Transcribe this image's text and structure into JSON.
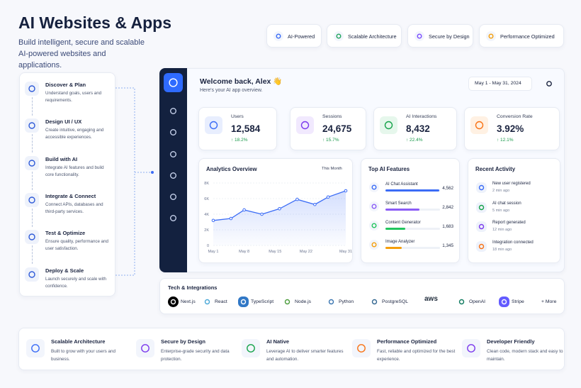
{
  "header": {
    "title": "AI Websites & Apps",
    "subtitle": "Build intelligent, secure and scalable AI-powered websites and applications."
  },
  "badges": [
    "AI-Powered",
    "Scalable Architecture",
    "Secure by Design",
    "Performance Optimized"
  ],
  "steps": [
    {
      "title": "Discover & Plan",
      "text": "Understand goals, users and requirements."
    },
    {
      "title": "Design UI / UX",
      "text": "Create intuitive, engaging and accessible experiences."
    },
    {
      "title": "Build with AI",
      "text": "Integrate AI features and build core functionality."
    },
    {
      "title": "Integrate & Connect",
      "text": "Connect APIs, databases and third-party services."
    },
    {
      "title": "Test & Optimize",
      "text": "Ensure quality, performance and user satisfaction."
    },
    {
      "title": "Deploy & Scale",
      "text": "Launch securely and scale with confidence."
    }
  ],
  "dashboard": {
    "welcome": "Welcome back, Alex 👋",
    "subtitle": "Here's your AI app overview.",
    "date_range": "May 1 - May 31, 2024",
    "stats": [
      {
        "label": "Users",
        "value": "12,584",
        "change": "↑ 18.2%"
      },
      {
        "label": "Sessions",
        "value": "24,675",
        "change": "↑ 15.7%"
      },
      {
        "label": "AI Interactions",
        "value": "8,432",
        "change": "↑ 22.4%"
      },
      {
        "label": "Conversion Rate",
        "value": "3.92%",
        "change": "↑ 12.1%"
      }
    ],
    "analytics": {
      "type": "line",
      "title": "Analytics Overview",
      "filter": "This Month",
      "x": [
        1,
        5,
        8,
        12,
        16,
        20,
        24,
        27,
        31
      ],
      "values": [
        3200,
        3450,
        4550,
        4000,
        4700,
        5900,
        5250,
        6200,
        7000
      ],
      "xlim": [
        1,
        31
      ],
      "xticks": [
        {
          "value": 1,
          "label": "May 1"
        },
        {
          "value": 8,
          "label": "May 8"
        },
        {
          "value": 15,
          "label": "May 15"
        },
        {
          "value": 22,
          "label": "May 22"
        },
        {
          "value": 31,
          "label": "May 31"
        }
      ],
      "ylim": [
        0,
        8000
      ],
      "yticks": [
        {
          "value": 0,
          "label": "0"
        },
        {
          "value": 2000,
          "label": "2K"
        },
        {
          "value": 4000,
          "label": "4K"
        },
        {
          "value": 6000,
          "label": "6K"
        },
        {
          "value": 8000,
          "label": "8K"
        }
      ],
      "color": "#3b6cf6",
      "grid": true
    },
    "features": {
      "title": "Top AI Features",
      "names": [
        "AI Chat Assistant",
        "Smart Search",
        "Content Generator",
        "Image Analyzer"
      ],
      "values": [
        4562,
        2842,
        1683,
        1345
      ],
      "value_labels": [
        "4,562",
        "2,842",
        "1,683",
        "1,345"
      ],
      "colors": [
        "#3b6cf6",
        "#8b5cf6",
        "#22c55e",
        "#f59e0b"
      ],
      "xlim": [
        0,
        4600
      ]
    },
    "activity": {
      "title": "Recent Activity",
      "items": [
        {
          "title": "New user registered",
          "time": "2 min ago"
        },
        {
          "title": "AI chat session",
          "time": "5 min ago"
        },
        {
          "title": "Report generated",
          "time": "12 min ago"
        },
        {
          "title": "Integration connected",
          "time": "18 min ago"
        }
      ]
    }
  },
  "tech": {
    "title": "Tech & Integrations",
    "items": [
      "Next.js",
      "React",
      "TypeScript",
      "Node.js",
      "Python",
      "PostgreSQL",
      "aws",
      "OpenAI",
      "Stripe"
    ],
    "more": "+ More"
  },
  "footer": [
    {
      "title": "Scalable Architecture",
      "text": "Built to grow with your users and business."
    },
    {
      "title": "Secure by Design",
      "text": "Enterprise-grade security and data protection."
    },
    {
      "title": "AI Native",
      "text": "Leverage AI to deliver smarter features and automation."
    },
    {
      "title": "Performance Optimized",
      "text": "Fast, reliable and optimized for the best experience."
    },
    {
      "title": "Developer Friendly",
      "text": "Clean code, modern stack and easy to maintain."
    }
  ]
}
